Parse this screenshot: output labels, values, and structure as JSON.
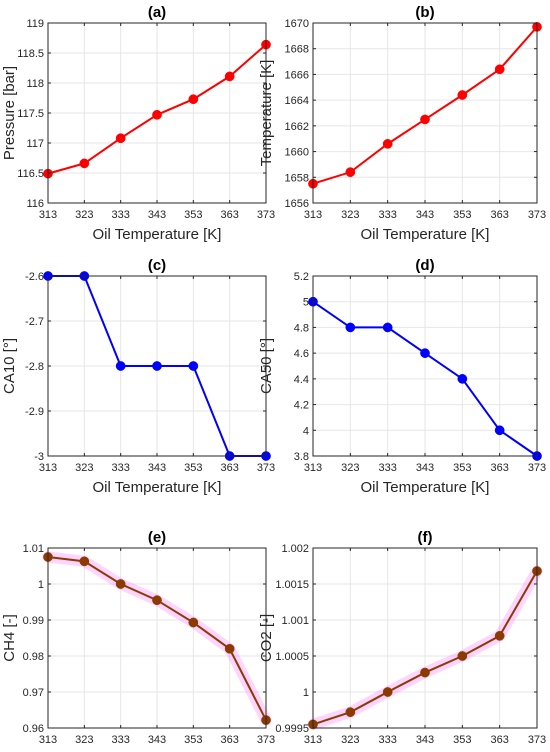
{
  "chart_data": [
    {
      "type": "line",
      "title": "(a)",
      "xlabel": "Oil Temperature [K]",
      "ylabel": "Pressure [bar]",
      "x": [
        313,
        323,
        333,
        343,
        353,
        363,
        373
      ],
      "x_ticks": [
        "313",
        "323",
        "333",
        "343",
        "353",
        "363",
        "373"
      ],
      "xlim": [
        313,
        373
      ],
      "ylim": [
        116,
        119
      ],
      "y_ticks": [
        "116",
        "116.5",
        "117",
        "117.5",
        "118",
        "118.5",
        "119"
      ],
      "y_tick_values": [
        116,
        116.5,
        117,
        117.5,
        118,
        118.5,
        119
      ],
      "series": [
        {
          "values": [
            116.49,
            116.66,
            117.08,
            117.47,
            117.73,
            118.11,
            118.64
          ],
          "color": "#ff0000"
        }
      ],
      "grid": true,
      "highlight": false
    },
    {
      "type": "line",
      "title": "(b)",
      "xlabel": "Oil Temperature [K]",
      "ylabel": "Temperature [K]",
      "x": [
        313,
        323,
        333,
        343,
        353,
        363,
        373
      ],
      "x_ticks": [
        "313",
        "323",
        "333",
        "343",
        "353",
        "363",
        "373"
      ],
      "xlim": [
        313,
        373
      ],
      "ylim": [
        1656,
        1670
      ],
      "y_ticks": [
        "1656",
        "1658",
        "1660",
        "1662",
        "1664",
        "1666",
        "1668",
        "1670"
      ],
      "y_tick_values": [
        1656,
        1658,
        1660,
        1662,
        1664,
        1666,
        1668,
        1670
      ],
      "series": [
        {
          "values": [
            1657.5,
            1658.4,
            1660.6,
            1662.5,
            1664.4,
            1666.4,
            1669.7
          ],
          "color": "#ff0000"
        }
      ],
      "grid": true,
      "highlight": false
    },
    {
      "type": "line",
      "title": "(c)",
      "xlabel": "Oil Temperature [K]",
      "ylabel": "CA10 [°]",
      "x": [
        313,
        323,
        333,
        343,
        353,
        363,
        373
      ],
      "x_ticks": [
        "313",
        "323",
        "333",
        "343",
        "353",
        "363",
        "373"
      ],
      "xlim": [
        313,
        373
      ],
      "ylim": [
        -3,
        -2.6
      ],
      "y_ticks": [
        "-3",
        "-2.9",
        "-2.8",
        "-2.7",
        "-2.6"
      ],
      "y_tick_values": [
        -3,
        -2.9,
        -2.8,
        -2.7,
        -2.6
      ],
      "series": [
        {
          "values": [
            -2.6,
            -2.6,
            -2.8,
            -2.8,
            -2.8,
            -3,
            -3
          ],
          "color": "#0000ff"
        }
      ],
      "grid": true,
      "highlight": false
    },
    {
      "type": "line",
      "title": "(d)",
      "xlabel": "Oil Temperature [K]",
      "ylabel": "CA50 [°]",
      "x": [
        313,
        323,
        333,
        343,
        353,
        363,
        373
      ],
      "x_ticks": [
        "313",
        "323",
        "333",
        "343",
        "353",
        "363",
        "373"
      ],
      "xlim": [
        313,
        373
      ],
      "ylim": [
        3.8,
        5.2
      ],
      "y_ticks": [
        "3.8",
        "4",
        "4.2",
        "4.4",
        "4.6",
        "4.8",
        "5",
        "5.2"
      ],
      "y_tick_values": [
        3.8,
        4,
        4.2,
        4.4,
        4.6,
        4.8,
        5,
        5.2
      ],
      "series": [
        {
          "values": [
            5,
            4.8,
            4.8,
            4.6,
            4.4,
            4,
            3.8
          ],
          "color": "#0000ff"
        }
      ],
      "grid": true,
      "highlight": false
    },
    {
      "type": "line",
      "title": "(e)",
      "xlabel": "Oil Temperature [K]",
      "ylabel": "CH4 [-]",
      "x": [
        313,
        323,
        333,
        343,
        353,
        363,
        373
      ],
      "x_ticks": [
        "313",
        "323",
        "333",
        "343",
        "353",
        "363",
        "373"
      ],
      "xlim": [
        313,
        373
      ],
      "ylim": [
        0.96,
        1.01
      ],
      "y_ticks": [
        "0.96",
        "0.97",
        "0.98",
        "0.99",
        "1",
        "1.01"
      ],
      "y_tick_values": [
        0.96,
        0.97,
        0.98,
        0.99,
        1,
        1.01
      ],
      "series": [
        {
          "values": [
            1.0075,
            1.0063,
            1.0,
            0.9955,
            0.9893,
            0.982,
            0.9622
          ],
          "color": "#8b3a00"
        }
      ],
      "grid": true,
      "highlight": true,
      "highlight_color": "#ff66ff"
    },
    {
      "type": "line",
      "title": "(f)",
      "xlabel": "Oil Temperature [K]",
      "ylabel": "CO2 [-]",
      "x": [
        313,
        323,
        333,
        343,
        353,
        363,
        373
      ],
      "x_ticks": [
        "313",
        "323",
        "333",
        "343",
        "353",
        "363",
        "373"
      ],
      "xlim": [
        313,
        373
      ],
      "ylim": [
        0.9995,
        1.002
      ],
      "y_ticks": [
        "0.9995",
        "1",
        "1.0005",
        "1.001",
        "1.0015",
        "1.002"
      ],
      "y_tick_values": [
        0.9995,
        1,
        1.0005,
        1.001,
        1.0015,
        1.002
      ],
      "series": [
        {
          "values": [
            0.99955,
            0.99972,
            1.0,
            1.00027,
            1.0005,
            1.00078,
            1.00168
          ],
          "color": "#8b3a00"
        }
      ],
      "grid": true,
      "highlight": true,
      "highlight_color": "#ff66ff"
    }
  ]
}
